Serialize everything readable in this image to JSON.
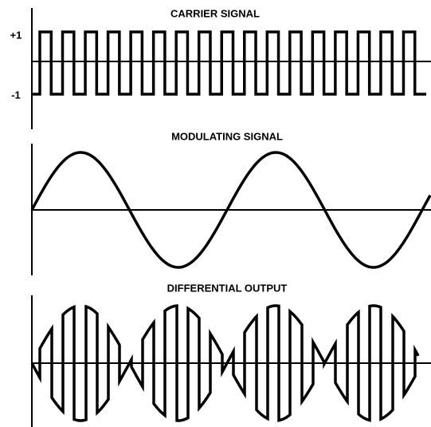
{
  "panels": [
    {
      "title": "CARRIER SIGNAL",
      "levels": [
        "+1",
        "-1"
      ]
    },
    {
      "title": "MODULATING SIGNAL"
    },
    {
      "title": "DIFFERENTIAL OUTPUT"
    }
  ]
}
